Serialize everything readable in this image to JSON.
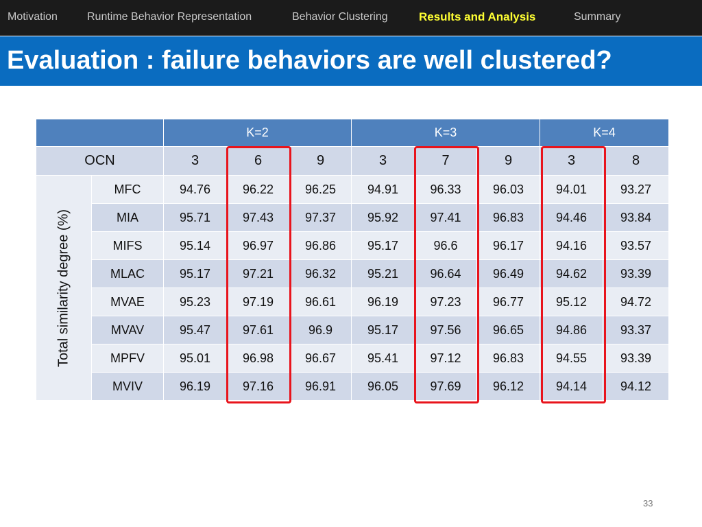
{
  "nav": {
    "items": [
      {
        "label": "Motivation"
      },
      {
        "label": "Runtime Behavior Representation"
      },
      {
        "label": "Behavior Clustering"
      },
      {
        "label": "Results and Analysis"
      },
      {
        "label": "Summary"
      }
    ],
    "active_index": 3,
    "active_color": "#ffff33"
  },
  "slide": {
    "title": "Evaluation : failure behaviors are well clustered?",
    "page_number": "33"
  },
  "table": {
    "k_headers": [
      "K=2",
      "K=3",
      "K=4"
    ],
    "ocn_label": "OCN",
    "ocn_values": [
      "3",
      "6",
      "9",
      "3",
      "7",
      "9",
      "3",
      "8"
    ],
    "metric_label": "Total similarity degree (%)",
    "rows": [
      {
        "method": "MFC",
        "values": [
          "94.76",
          "96.22",
          "96.25",
          "94.91",
          "96.33",
          "96.03",
          "94.01",
          "93.27"
        ]
      },
      {
        "method": "MIA",
        "values": [
          "95.71",
          "97.43",
          "97.37",
          "95.92",
          "97.41",
          "96.83",
          "94.46",
          "93.84"
        ]
      },
      {
        "method": "MIFS",
        "values": [
          "95.14",
          "96.97",
          "96.86",
          "95.17",
          "96.6",
          "96.17",
          "94.16",
          "93.57"
        ]
      },
      {
        "method": "MLAC",
        "values": [
          "95.17",
          "97.21",
          "96.32",
          "95.21",
          "96.64",
          "96.49",
          "94.62",
          "93.39"
        ]
      },
      {
        "method": "MVAE",
        "values": [
          "95.23",
          "97.19",
          "96.61",
          "96.19",
          "97.23",
          "96.77",
          "95.12",
          "94.72"
        ]
      },
      {
        "method": "MVAV",
        "values": [
          "95.47",
          "97.61",
          "96.9",
          "95.17",
          "97.56",
          "96.65",
          "94.86",
          "93.37"
        ]
      },
      {
        "method": "MPFV",
        "values": [
          "95.01",
          "96.98",
          "96.67",
          "95.41",
          "97.12",
          "96.83",
          "94.55",
          "93.39"
        ]
      },
      {
        "method": "MVIV",
        "values": [
          "96.19",
          "97.16",
          "96.91",
          "96.05",
          "97.69",
          "96.12",
          "94.14",
          "94.12"
        ]
      }
    ],
    "highlighted_columns": [
      1,
      4,
      6
    ],
    "highlight_color": "#e8141c",
    "header_color": "#4f81bd"
  }
}
